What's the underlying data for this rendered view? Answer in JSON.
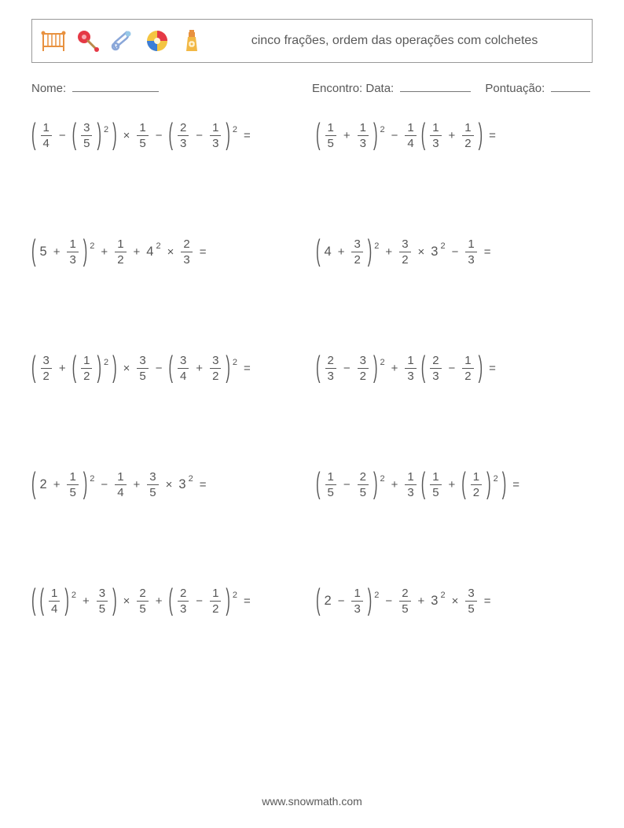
{
  "title": "cinco frações, ordem das operações com colchetes",
  "meta": {
    "name_label": "Nome:",
    "date_label": "Encontro: Data:",
    "score_label": "Pontuação:",
    "name_blank_width": 110,
    "date_blank_width": 90,
    "score_blank_width": 50
  },
  "problems": [
    {
      "tokens": [
        "(",
        "f:1/4",
        "−",
        "(",
        "f:3/5",
        ")",
        "^2",
        ")",
        "×",
        "f:1/5",
        "−",
        "(",
        "f:2/3",
        "−",
        "f:1/3",
        ")",
        "^2",
        "="
      ]
    },
    {
      "tokens": [
        "(",
        "f:1/5",
        "+",
        "f:1/3",
        ")",
        "^2",
        "−",
        "f:1/4",
        "(",
        "f:1/3",
        "+",
        "f:1/2",
        ")",
        "="
      ]
    },
    {
      "tokens": [
        "(",
        "5",
        "+",
        "f:1/3",
        ")",
        "^2",
        "+",
        "f:1/2",
        "+",
        "4",
        "^2",
        "×",
        "f:2/3",
        "="
      ]
    },
    {
      "tokens": [
        "(",
        "4",
        "+",
        "f:3/2",
        ")",
        "^2",
        "+",
        "f:3/2",
        "×",
        "3",
        "^2",
        "−",
        "f:1/3",
        "="
      ]
    },
    {
      "tokens": [
        "(",
        "f:3/2",
        "+",
        "(",
        "f:1/2",
        ")",
        "^2",
        ")",
        "×",
        "f:3/5",
        "−",
        "(",
        "f:3/4",
        "+",
        "f:3/2",
        ")",
        "^2",
        "="
      ]
    },
    {
      "tokens": [
        "(",
        "f:2/3",
        "−",
        "f:3/2",
        ")",
        "^2",
        "+",
        "f:1/3",
        "(",
        "f:2/3",
        "−",
        "f:1/2",
        ")",
        "="
      ]
    },
    {
      "tokens": [
        "(",
        "2",
        "+",
        "f:1/5",
        ")",
        "^2",
        "−",
        "f:1/4",
        "+",
        "f:3/5",
        "×",
        "3",
        "^2",
        "="
      ]
    },
    {
      "tokens": [
        "(",
        "f:1/5",
        "−",
        "f:2/5",
        ")",
        "^2",
        "+",
        "f:1/3",
        "(",
        "f:1/5",
        "+",
        "(",
        "f:1/2",
        ")",
        "^2",
        ")",
        "="
      ]
    },
    {
      "tokens": [
        "(",
        "(",
        "f:1/4",
        ")",
        "^2",
        "+",
        "f:3/5",
        ")",
        "×",
        "f:2/5",
        "+",
        "(",
        "f:2/3",
        "−",
        "f:1/2",
        ")",
        "^2",
        "="
      ]
    },
    {
      "tokens": [
        "(",
        "2",
        "−",
        "f:1/3",
        ")",
        "^2",
        "−",
        "f:2/5",
        "+",
        "3",
        "^2",
        "×",
        "f:3/5",
        "="
      ]
    }
  ],
  "footer": "www.snowmath.com",
  "colors": {
    "text": "#555555",
    "border": "#999999",
    "background": "#ffffff"
  }
}
